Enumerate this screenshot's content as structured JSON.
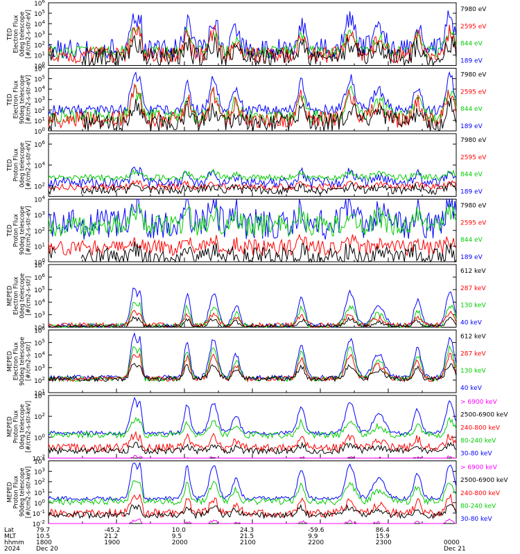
{
  "chart_data": [
    {
      "type": "line",
      "ylabel": "TED\nElectron Flux\n0deg telescope\n[#/cm2-s-str-eV]",
      "ytick_exponents": [
        0,
        1,
        2,
        3,
        4,
        5,
        6
      ],
      "log_scale": true,
      "series": [
        {
          "name": "7980 eV",
          "color": "#000000",
          "base": 0.8,
          "noise": 0.9,
          "peak_scale": 1.4
        },
        {
          "name": "2595 eV",
          "color": "#ff0000",
          "base": 1.0,
          "noise": 0.8,
          "peak_scale": 2.4
        },
        {
          "name": "844 eV",
          "color": "#00cc00",
          "base": 1.3,
          "noise": 0.6,
          "peak_scale": 2.2
        },
        {
          "name": "189 eV",
          "color": "#0000ff",
          "base": 1.6,
          "noise": 1.0,
          "peak_scale": 3.2
        }
      ]
    },
    {
      "type": "line",
      "ylabel": "TED\nElectron Flux\n90deg telescope\n[#/cm2-s-str-eV]",
      "ytick_exponents": [
        0,
        1,
        2,
        3,
        4,
        5,
        6
      ],
      "log_scale": true,
      "series": [
        {
          "name": "7980 eV",
          "color": "#000000",
          "base": 0.8,
          "noise": 0.9,
          "peak_scale": 1.6
        },
        {
          "name": "2595 eV",
          "color": "#ff0000",
          "base": 1.1,
          "noise": 0.8,
          "peak_scale": 2.6
        },
        {
          "name": "844 eV",
          "color": "#00cc00",
          "base": 1.4,
          "noise": 0.7,
          "peak_scale": 2.5
        },
        {
          "name": "189 eV",
          "color": "#0000ff",
          "base": 2.0,
          "noise": 0.5,
          "peak_scale": 3.4
        }
      ]
    },
    {
      "type": "line",
      "ylabel": "TED\nProton Flux\n0deg telescope\n[#/cm2-s-str-eV]",
      "ytick_exponents": [
        2,
        4,
        6
      ],
      "log_scale": true,
      "ymin": 1,
      "ymax": 7,
      "series": [
        {
          "name": "7980 eV",
          "color": "#000000",
          "base": 1.6,
          "noise": 0.4,
          "peak_scale": 0.4
        },
        {
          "name": "2595 eV",
          "color": "#ff0000",
          "base": 1.9,
          "noise": 0.3,
          "peak_scale": 0.4
        },
        {
          "name": "844 eV",
          "color": "#00cc00",
          "base": 2.8,
          "noise": 0.3,
          "peak_scale": 0.6
        },
        {
          "name": "189 eV",
          "color": "#0000ff",
          "base": 2.3,
          "noise": 0.5,
          "peak_scale": 1.2
        }
      ]
    },
    {
      "type": "line",
      "ylabel": "TED\nProton Flux\n90deg telescope\n[#/cm2-s-str-eV]",
      "ytick_exponents": [
        0,
        1,
        2,
        3,
        4
      ],
      "log_scale": true,
      "series": [
        {
          "name": "7980 eV",
          "color": "#000000",
          "base": 0.3,
          "noise": 0.6,
          "peak_scale": 0.5
        },
        {
          "name": "2595 eV",
          "color": "#ff0000",
          "base": 0.9,
          "noise": 0.5,
          "peak_scale": 0.5
        },
        {
          "name": "844 eV",
          "color": "#00cc00",
          "base": 2.3,
          "noise": 0.7,
          "peak_scale": 0.9
        },
        {
          "name": "189 eV",
          "color": "#0000ff",
          "base": 2.4,
          "noise": 1.0,
          "peak_scale": 1.5
        }
      ]
    },
    {
      "type": "line",
      "ylabel": "MEPED\nElectron Flux\n0deg telescope\n[#/cm2-s-str]",
      "ytick_exponents": [
        2,
        3,
        4,
        5,
        6,
        7
      ],
      "log_scale": true,
      "series": [
        {
          "name": "612 keV",
          "color": "#000000",
          "base": 2.05,
          "noise": 0.15,
          "peak_scale": 0.7
        },
        {
          "name": "287 keV",
          "color": "#ff0000",
          "base": 2.15,
          "noise": 0.2,
          "peak_scale": 1.0
        },
        {
          "name": "130 keV",
          "color": "#00cc00",
          "base": 2.05,
          "noise": 0.25,
          "peak_scale": 1.8
        },
        {
          "name": "40 keV",
          "color": "#0000ff",
          "base": 2.1,
          "noise": 0.2,
          "peak_scale": 3.0
        }
      ]
    },
    {
      "type": "line",
      "ylabel": "MEPED\nElectron Flux\n90deg telescope\n[#/cm2-s-str]",
      "ytick_exponents": [
        1,
        2,
        3,
        4,
        5,
        6
      ],
      "log_scale": true,
      "series": [
        {
          "name": "612 keV",
          "color": "#000000",
          "base": 2.1,
          "noise": 0.2,
          "peak_scale": 1.2
        },
        {
          "name": "287 keV",
          "color": "#ff0000",
          "base": 2.1,
          "noise": 0.2,
          "peak_scale": 2.0
        },
        {
          "name": "130 keV",
          "color": "#00cc00",
          "base": 2.1,
          "noise": 0.2,
          "peak_scale": 2.7
        },
        {
          "name": "40 keV",
          "color": "#0000ff",
          "base": 2.2,
          "noise": 0.2,
          "peak_scale": 3.4
        }
      ]
    },
    {
      "type": "line",
      "ylabel": "MEPED\nProton Flux\n0deg telescope\n[#/cm2-s-str-keV]",
      "ytick_exponents": [
        -2,
        0,
        2,
        4
      ],
      "log_scale": true,
      "series": [
        {
          "name": "> 6900 keV",
          "color": "#ff00ff",
          "base": -2.3,
          "noise": 0.2,
          "peak_scale": 0.4
        },
        {
          "name": "2500-6900 keV",
          "color": "#000000",
          "base": -1.3,
          "noise": 0.3,
          "peak_scale": 0.6
        },
        {
          "name": "240-800 keV",
          "color": "#ff0000",
          "base": -1.0,
          "noise": 0.4,
          "peak_scale": 1.2
        },
        {
          "name": "80-240 keV",
          "color": "#00cc00",
          "base": 0.2,
          "noise": 0.3,
          "peak_scale": 1.5
        },
        {
          "name": "30-80 keV",
          "color": "#0000ff",
          "base": 0.4,
          "noise": 0.2,
          "peak_scale": 3.2
        }
      ]
    },
    {
      "type": "line",
      "ylabel": "MEPED\nProton Flux\n90deg telescope\n[#/cm2-s-str-keV]",
      "ytick_exponents": [
        -2,
        -1,
        0,
        1,
        2,
        3,
        4
      ],
      "log_scale": true,
      "series": [
        {
          "name": "> 6900 keV",
          "color": "#ff00ff",
          "base": -2.3,
          "noise": 0.2,
          "peak_scale": 0.6
        },
        {
          "name": "2500-6900 keV",
          "color": "#000000",
          "base": -1.2,
          "noise": 0.3,
          "peak_scale": 0.9
        },
        {
          "name": "240-800 keV",
          "color": "#ff0000",
          "base": -1.0,
          "noise": 0.4,
          "peak_scale": 1.5
        },
        {
          "name": "80-240 keV",
          "color": "#00cc00",
          "base": 0.1,
          "noise": 0.3,
          "peak_scale": 2.0
        },
        {
          "name": "30-80 keV",
          "color": "#0000ff",
          "base": 0.4,
          "noise": 0.2,
          "peak_scale": 3.5
        }
      ]
    }
  ],
  "x_axis": {
    "row_labels": [
      "Lat",
      "MLT",
      "hhmm",
      "2024"
    ],
    "ticks": [
      {
        "frac": 0.0,
        "lat": "79.7",
        "mlt": "10.5",
        "hhmm": "1800",
        "date": "Dec 20"
      },
      {
        "frac": 0.167,
        "lat": "-45.2",
        "mlt": "21.2",
        "hhmm": "1900",
        "date": ""
      },
      {
        "frac": 0.333,
        "lat": "10.0",
        "mlt": "9.5",
        "hhmm": "2000",
        "date": ""
      },
      {
        "frac": 0.5,
        "lat": "24.3",
        "mlt": "21.5",
        "hhmm": "2100",
        "date": ""
      },
      {
        "frac": 0.667,
        "lat": "-59.6",
        "mlt": "9.9",
        "hhmm": "2200",
        "date": ""
      },
      {
        "frac": 0.833,
        "lat": "86.4",
        "mlt": "15.9",
        "hhmm": "2300",
        "date": ""
      },
      {
        "frac": 1.0,
        "lat": "",
        "mlt": "",
        "hhmm": "0000",
        "date": "Dec 21"
      }
    ]
  },
  "events": [
    {
      "center": 0.21,
      "width": 0.012,
      "amp": 1.0
    },
    {
      "center": 0.225,
      "width": 0.006,
      "amp": 0.7
    },
    {
      "center": 0.34,
      "width": 0.01,
      "amp": 0.85
    },
    {
      "center": 0.405,
      "width": 0.014,
      "amp": 0.9
    },
    {
      "center": 0.46,
      "width": 0.012,
      "amp": 0.55
    },
    {
      "center": 0.62,
      "width": 0.012,
      "amp": 0.8
    },
    {
      "center": 0.74,
      "width": 0.016,
      "amp": 0.9
    },
    {
      "center": 0.81,
      "width": 0.02,
      "amp": 0.55
    },
    {
      "center": 0.905,
      "width": 0.012,
      "amp": 0.7
    },
    {
      "center": 0.985,
      "width": 0.014,
      "amp": 0.95
    }
  ]
}
